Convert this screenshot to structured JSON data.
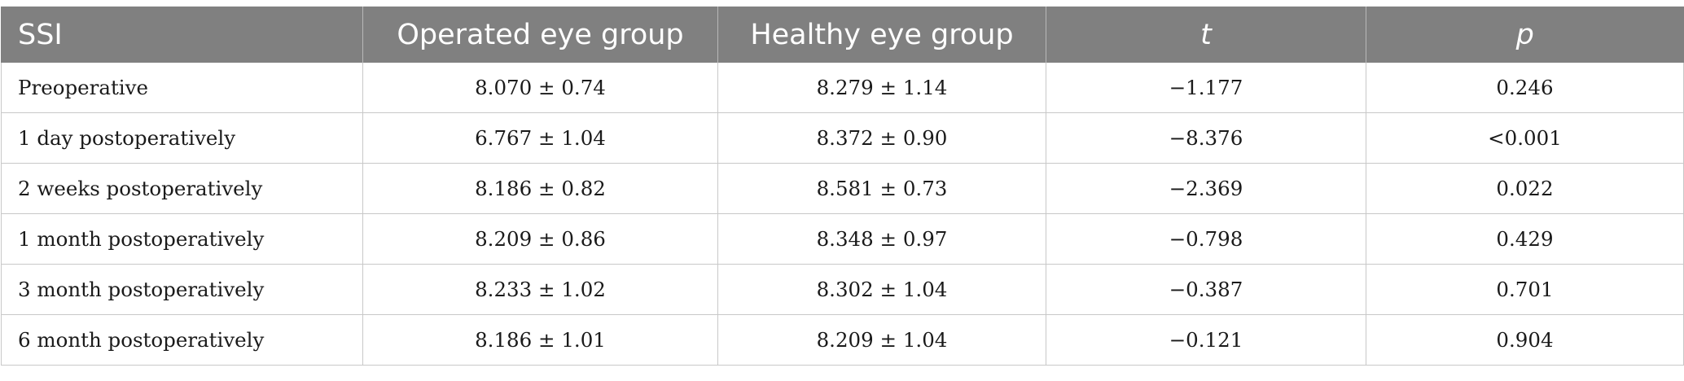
{
  "table": {
    "headers": [
      "SSI",
      "Operated eye group",
      "Healthy eye group",
      "t",
      "p"
    ],
    "rows": [
      [
        "Preoperative",
        "8.070 ± 0.74",
        "8.279 ± 1.14",
        "−1.177",
        "0.246"
      ],
      [
        "1 day postoperatively",
        "6.767 ± 1.04",
        "8.372 ± 0.90",
        "−8.376",
        "<0.001"
      ],
      [
        "2 weeks postoperatively",
        "8.186 ± 0.82",
        "8.581 ± 0.73",
        "−2.369",
        "0.022"
      ],
      [
        "1 month postoperatively",
        "8.209 ± 0.86",
        "8.348 ± 0.97",
        "−0.798",
        "0.429"
      ],
      [
        "3 month postoperatively",
        "8.233 ± 1.02",
        "8.302 ± 1.04",
        "−0.387",
        "0.701"
      ],
      [
        "6 month postoperatively",
        "8.186 ± 1.01",
        "8.209 ± 1.04",
        "−0.121",
        "0.904"
      ]
    ]
  },
  "colors": {
    "header_background": "#808080",
    "header_text": "#ffffff",
    "grid_line": "#c8c8c8"
  }
}
